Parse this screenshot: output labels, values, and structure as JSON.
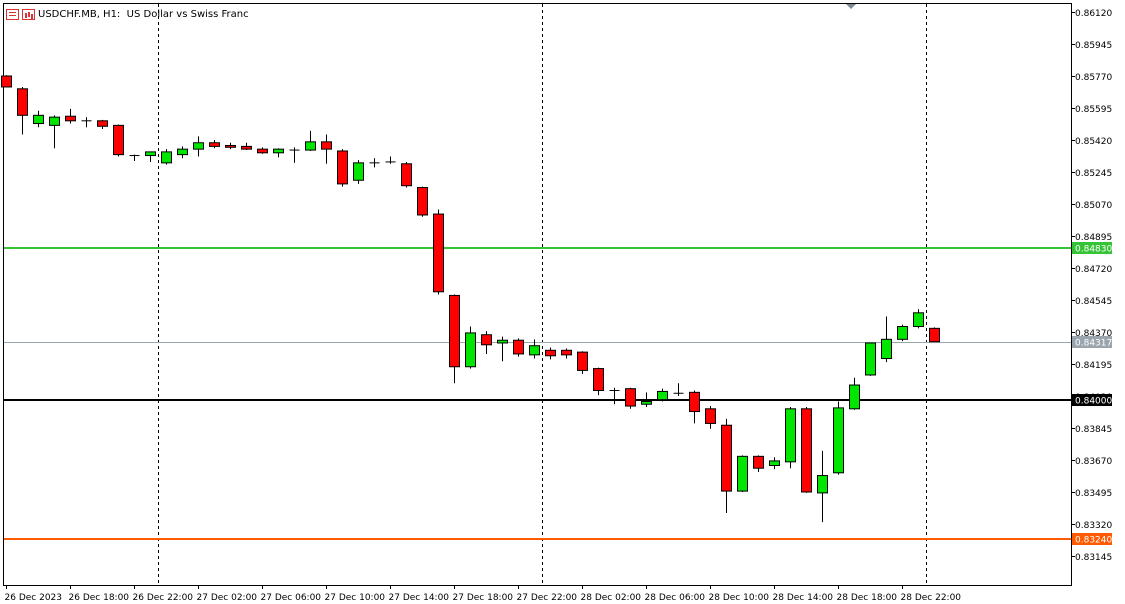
{
  "header": {
    "symbol": "USDCHF.MB",
    "timeframe": "H1:",
    "description": "US Dollar vs Swiss Franc",
    "table_icon": "quotes-table-icon",
    "chart_icon": "chart-icon"
  },
  "colors": {
    "bull": "#00e600",
    "bear": "#ff0000",
    "outline": "#000000",
    "support_line": "#008000",
    "green_level": "#35c435",
    "black_level": "#000000",
    "orange_level": "#ff5a00",
    "current_line": "#9aa5ad"
  },
  "chart_data": {
    "type": "candlestick",
    "title": "USDCHF.MB, H1:  US Dollar vs Swiss Franc",
    "x_axis": {
      "labels": [
        "26 Dec 2023",
        "26 Dec 18:00",
        "26 Dec 22:00",
        "27 Dec 02:00",
        "27 Dec 06:00",
        "27 Dec 10:00",
        "27 Dec 14:00",
        "27 Dec 18:00",
        "27 Dec 22:00",
        "28 Dec 02:00",
        "28 Dec 06:00",
        "28 Dec 10:00",
        "28 Dec 14:00",
        "28 Dec 18:00",
        "28 Dec 22:00"
      ],
      "label_candle_index": [
        0,
        4,
        8,
        12,
        16,
        20,
        24,
        28,
        32,
        36,
        40,
        44,
        48,
        52,
        56
      ]
    },
    "y_axis": {
      "range": [
        0.8306,
        0.8616
      ],
      "ticks": [
        "0.86120",
        "0.85945",
        "0.85770",
        "0.85595",
        "0.85420",
        "0.85245",
        "0.85070",
        "0.84895",
        "0.84720",
        "0.84545",
        "0.84370",
        "0.84195",
        "0.84020",
        "0.83845",
        "0.83670",
        "0.83495",
        "0.83320",
        "0.83145"
      ]
    },
    "period_separators_at_candle": [
      9.5,
      33.5,
      57.5
    ],
    "horizontal_levels": [
      {
        "price": 0.8483,
        "label": "0.84830",
        "color": "green"
      },
      {
        "price": 0.84317,
        "label": "0.84317",
        "color": "current"
      },
      {
        "price": 0.84,
        "label": "0.84000",
        "color": "black"
      },
      {
        "price": 0.8324,
        "label": "0.83240",
        "color": "orange"
      }
    ],
    "candles": [
      {
        "o": 0.8577,
        "h": 0.85775,
        "l": 0.8571,
        "c": 0.8571
      },
      {
        "o": 0.857,
        "h": 0.8571,
        "l": 0.8545,
        "c": 0.85555
      },
      {
        "o": 0.8551,
        "h": 0.8558,
        "l": 0.8549,
        "c": 0.85555
      },
      {
        "o": 0.855,
        "h": 0.85555,
        "l": 0.85375,
        "c": 0.85545
      },
      {
        "o": 0.8555,
        "h": 0.8559,
        "l": 0.8551,
        "c": 0.85525
      },
      {
        "o": 0.85525,
        "h": 0.85545,
        "l": 0.8549,
        "c": 0.85525
      },
      {
        "o": 0.85525,
        "h": 0.8553,
        "l": 0.8548,
        "c": 0.85495
      },
      {
        "o": 0.855,
        "h": 0.85505,
        "l": 0.8533,
        "c": 0.8534
      },
      {
        "o": 0.85335,
        "h": 0.8534,
        "l": 0.85305,
        "c": 0.8533
      },
      {
        "o": 0.85335,
        "h": 0.85355,
        "l": 0.853,
        "c": 0.85355
      },
      {
        "o": 0.85295,
        "h": 0.8537,
        "l": 0.85285,
        "c": 0.85355
      },
      {
        "o": 0.8534,
        "h": 0.85385,
        "l": 0.8532,
        "c": 0.8537
      },
      {
        "o": 0.8537,
        "h": 0.8544,
        "l": 0.8533,
        "c": 0.85405
      },
      {
        "o": 0.85405,
        "h": 0.8542,
        "l": 0.85375,
        "c": 0.85385
      },
      {
        "o": 0.8539,
        "h": 0.85405,
        "l": 0.8537,
        "c": 0.8538
      },
      {
        "o": 0.85385,
        "h": 0.85405,
        "l": 0.85365,
        "c": 0.8537
      },
      {
        "o": 0.8537,
        "h": 0.8538,
        "l": 0.85345,
        "c": 0.8535
      },
      {
        "o": 0.8535,
        "h": 0.85375,
        "l": 0.85325,
        "c": 0.8537
      },
      {
        "o": 0.85365,
        "h": 0.8538,
        "l": 0.85295,
        "c": 0.85365
      },
      {
        "o": 0.85365,
        "h": 0.8547,
        "l": 0.8536,
        "c": 0.8541
      },
      {
        "o": 0.8541,
        "h": 0.8545,
        "l": 0.8529,
        "c": 0.8537
      },
      {
        "o": 0.8536,
        "h": 0.8537,
        "l": 0.85165,
        "c": 0.8518
      },
      {
        "o": 0.852,
        "h": 0.8531,
        "l": 0.8518,
        "c": 0.85295
      },
      {
        "o": 0.8529,
        "h": 0.8532,
        "l": 0.8527,
        "c": 0.85295
      },
      {
        "o": 0.853,
        "h": 0.8533,
        "l": 0.8529,
        "c": 0.853
      },
      {
        "o": 0.8529,
        "h": 0.853,
        "l": 0.8516,
        "c": 0.8517
      },
      {
        "o": 0.8516,
        "h": 0.85165,
        "l": 0.85,
        "c": 0.8501
      },
      {
        "o": 0.85015,
        "h": 0.8504,
        "l": 0.84575,
        "c": 0.8459
      },
      {
        "o": 0.8457,
        "h": 0.84575,
        "l": 0.8409,
        "c": 0.8418
      },
      {
        "o": 0.8418,
        "h": 0.844,
        "l": 0.8417,
        "c": 0.84365
      },
      {
        "o": 0.84355,
        "h": 0.84375,
        "l": 0.8425,
        "c": 0.843
      },
      {
        "o": 0.8431,
        "h": 0.84345,
        "l": 0.8421,
        "c": 0.84325
      },
      {
        "o": 0.84325,
        "h": 0.84335,
        "l": 0.84235,
        "c": 0.8425
      },
      {
        "o": 0.84245,
        "h": 0.8433,
        "l": 0.84225,
        "c": 0.84295
      },
      {
        "o": 0.8427,
        "h": 0.84285,
        "l": 0.8422,
        "c": 0.8424
      },
      {
        "o": 0.8427,
        "h": 0.8428,
        "l": 0.84225,
        "c": 0.84245
      },
      {
        "o": 0.8426,
        "h": 0.84265,
        "l": 0.8414,
        "c": 0.8416
      },
      {
        "o": 0.8417,
        "h": 0.84175,
        "l": 0.84025,
        "c": 0.8405
      },
      {
        "o": 0.8405,
        "h": 0.84065,
        "l": 0.83975,
        "c": 0.8405
      },
      {
        "o": 0.8406,
        "h": 0.84065,
        "l": 0.8395,
        "c": 0.83965
      },
      {
        "o": 0.83975,
        "h": 0.8404,
        "l": 0.8396,
        "c": 0.8399
      },
      {
        "o": 0.84,
        "h": 0.8406,
        "l": 0.8399,
        "c": 0.84045
      },
      {
        "o": 0.8403,
        "h": 0.8409,
        "l": 0.8402,
        "c": 0.84035
      },
      {
        "o": 0.8404,
        "h": 0.8405,
        "l": 0.8387,
        "c": 0.83935
      },
      {
        "o": 0.8395,
        "h": 0.83965,
        "l": 0.8384,
        "c": 0.8387
      },
      {
        "o": 0.8386,
        "h": 0.83895,
        "l": 0.8338,
        "c": 0.835
      },
      {
        "o": 0.835,
        "h": 0.83695,
        "l": 0.83495,
        "c": 0.8369
      },
      {
        "o": 0.8369,
        "h": 0.83695,
        "l": 0.83605,
        "c": 0.83625
      },
      {
        "o": 0.8364,
        "h": 0.83685,
        "l": 0.8362,
        "c": 0.83665
      },
      {
        "o": 0.8366,
        "h": 0.8396,
        "l": 0.83625,
        "c": 0.8395
      },
      {
        "o": 0.8395,
        "h": 0.8396,
        "l": 0.8349,
        "c": 0.83495
      },
      {
        "o": 0.8349,
        "h": 0.8372,
        "l": 0.8333,
        "c": 0.83585
      },
      {
        "o": 0.836,
        "h": 0.8399,
        "l": 0.8359,
        "c": 0.83955
      },
      {
        "o": 0.8395,
        "h": 0.8412,
        "l": 0.83945,
        "c": 0.8408
      },
      {
        "o": 0.84135,
        "h": 0.8431,
        "l": 0.8413,
        "c": 0.8431
      },
      {
        "o": 0.84225,
        "h": 0.84455,
        "l": 0.84205,
        "c": 0.8433
      },
      {
        "o": 0.8433,
        "h": 0.8441,
        "l": 0.8432,
        "c": 0.844
      },
      {
        "o": 0.844,
        "h": 0.84495,
        "l": 0.8439,
        "c": 0.84475
      },
      {
        "o": 0.8439,
        "h": 0.84395,
        "l": 0.84317,
        "c": 0.84317
      }
    ]
  }
}
